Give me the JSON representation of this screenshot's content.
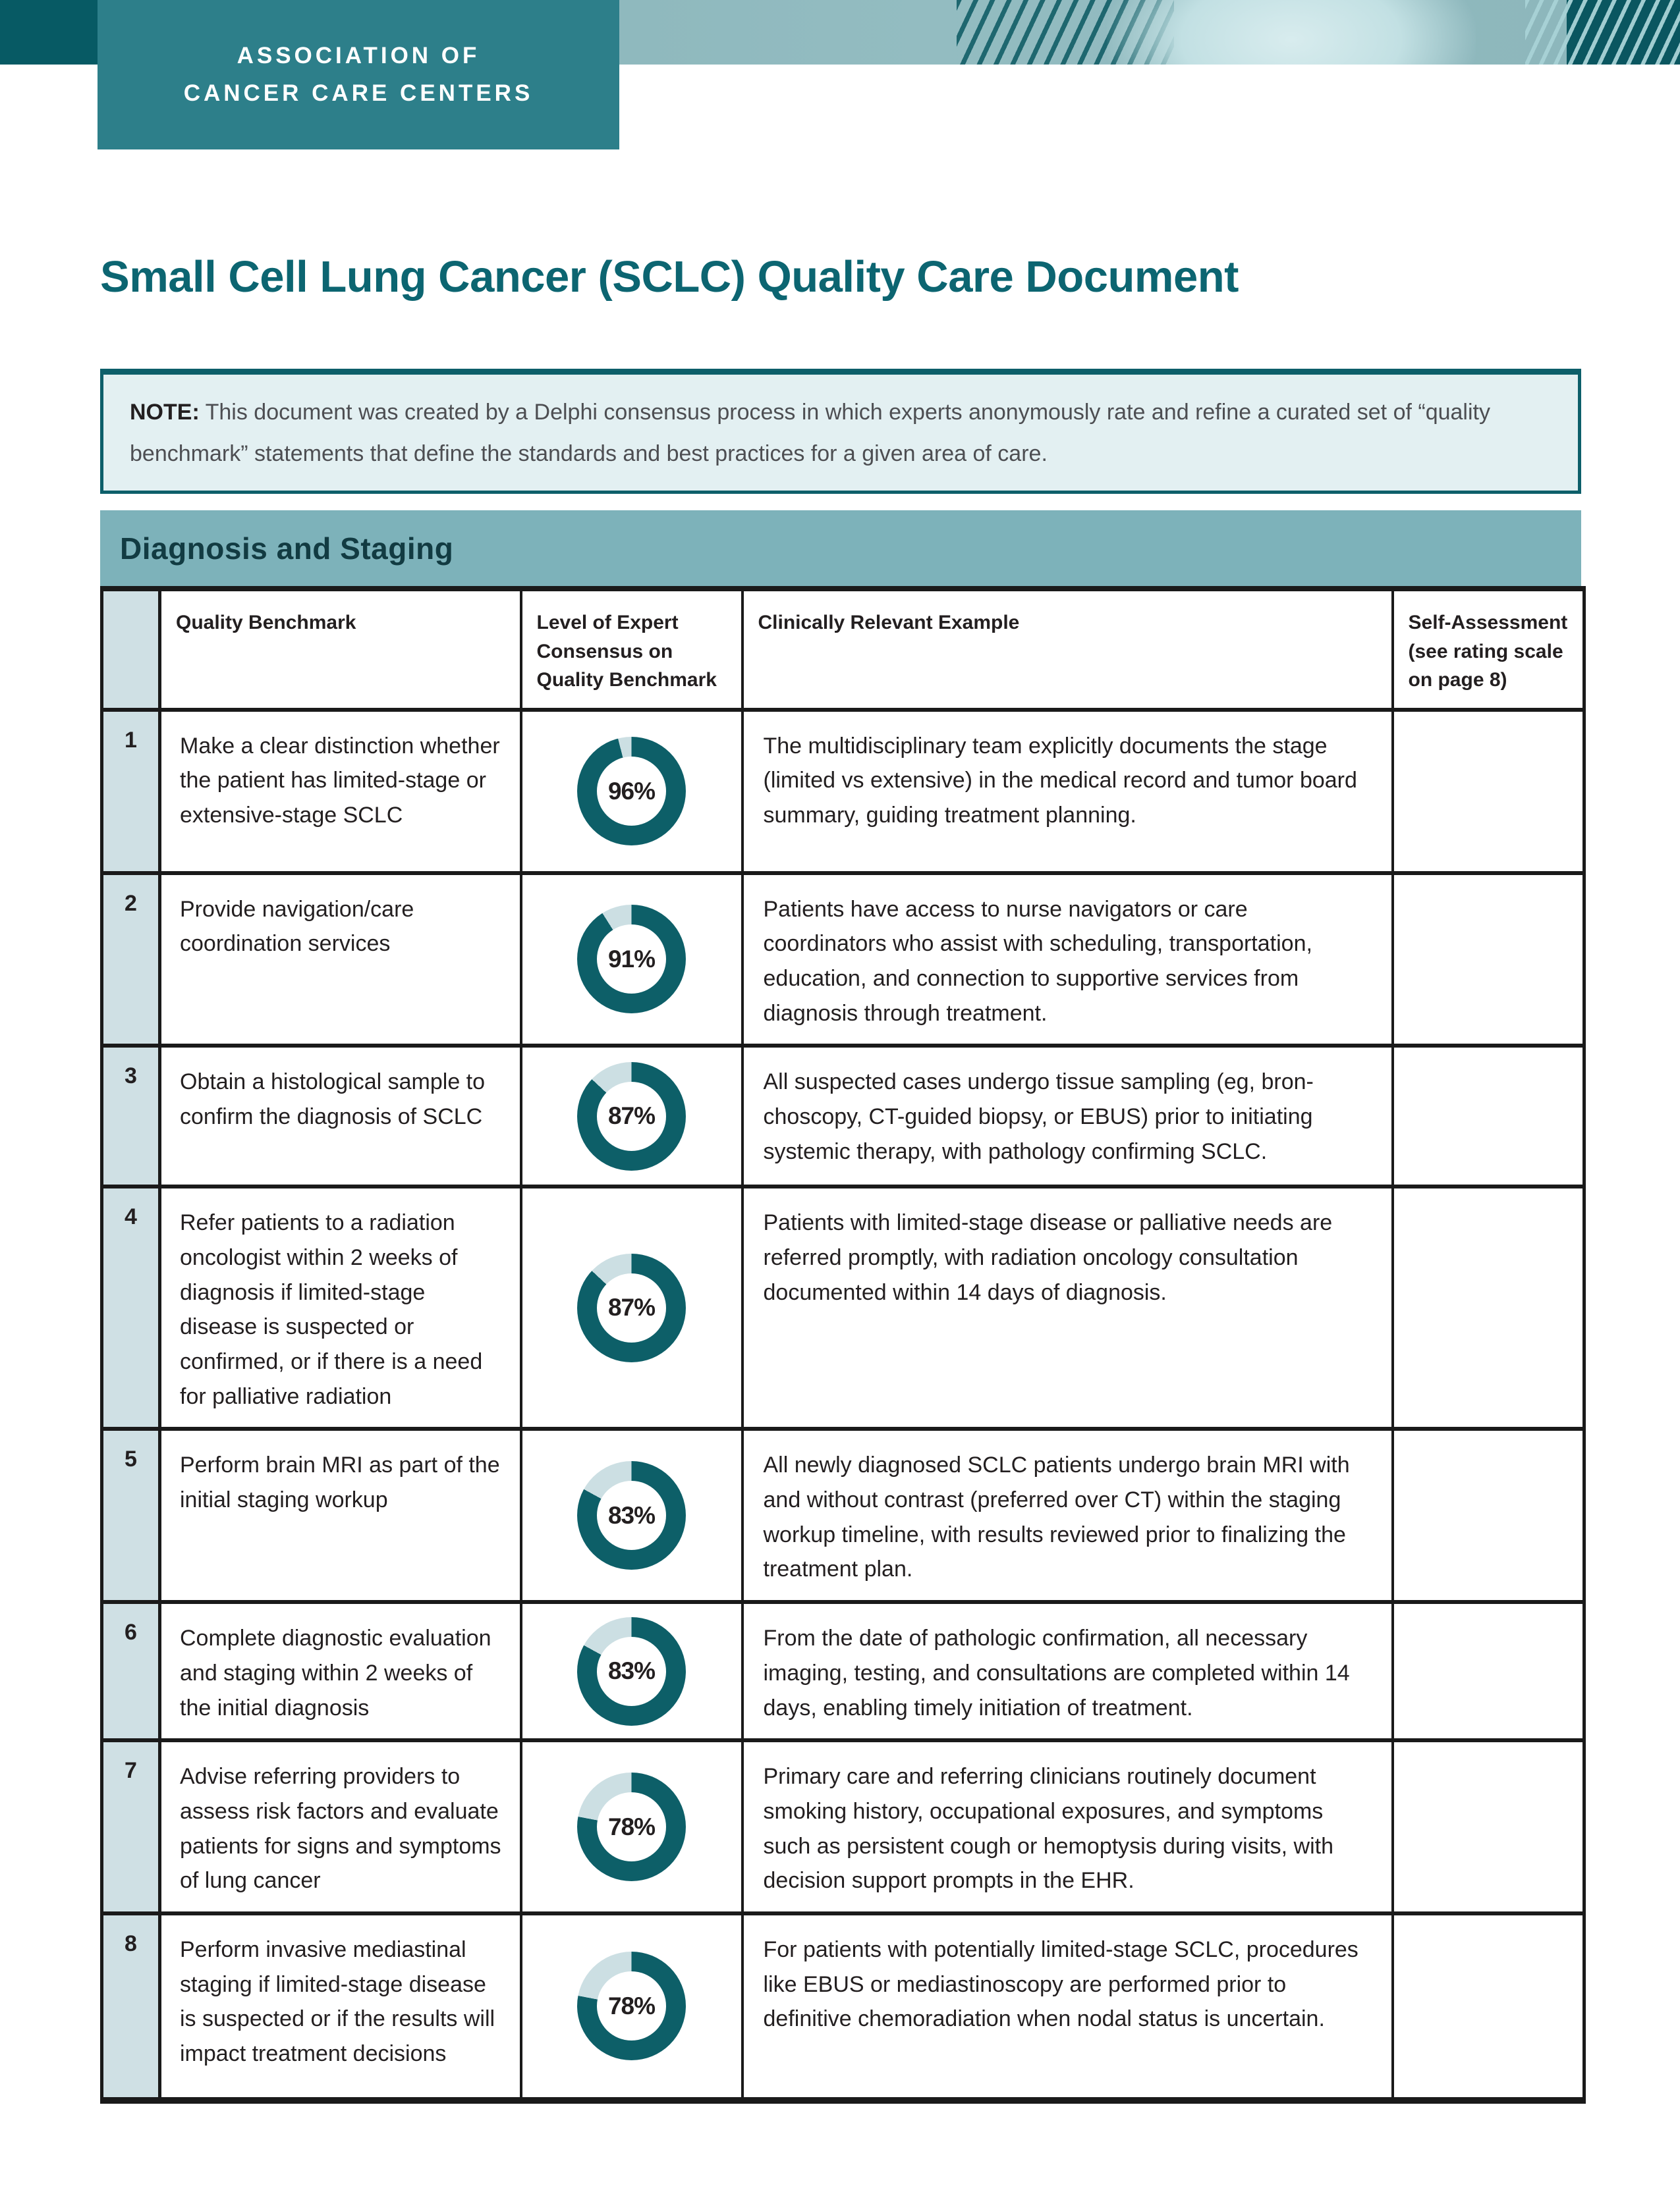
{
  "header": {
    "org_line1": "ASSOCIATION OF",
    "org_line2": "CANCER CARE CENTERS",
    "decoration": "teal-diagonal-stripes-pattern"
  },
  "title": "Small Cell Lung Cancer (SCLC) Quality Care Document",
  "note": {
    "label": "NOTE:",
    "text": "This document was created by a Delphi consensus process in which experts anonymously rate and refine a curated set of “quality benchmark” statements that define the standards and best practices for a given area of care."
  },
  "section": {
    "title": "Diagnosis and Staging"
  },
  "colors": {
    "brand_teal_dark": "#075a64",
    "brand_teal": "#2d7f8a",
    "title_teal": "#0c6571",
    "section_band_bg": "#7db2ba",
    "section_band_text": "#123b42",
    "note_bg": "#e3f0f2",
    "note_border": "#0d5f6a",
    "number_column_bg": "#cfe0e4",
    "donut_fill": "#0d5f68",
    "donut_remainder": "#ccdfe3",
    "table_border": "#1a1a1a"
  },
  "table": {
    "columns": [
      "Quality Benchmark",
      "Level of Expert Consensus on Quality Benchmark",
      "Clinically Relevant Example",
      "Self-Assessment (see rating scale on page 8)"
    ],
    "rows": [
      {
        "num": "1",
        "benchmark": "Make a clear distinction whether the patient has limited-stage or extensive-stage SCLC",
        "consensus_pct": 96,
        "consensus_label": "96%",
        "example": "The multidisciplinary team explicitly documents the stage (limited vs extensive) in the medical record and tumor board summary, guiding treatment planning.",
        "self_assessment": ""
      },
      {
        "num": "2",
        "benchmark": "Provide navigation/care coordination services",
        "consensus_pct": 91,
        "consensus_label": "91%",
        "example": "Patients have access to nurse navigators or care coordinators who assist with scheduling, transportation, education, and connection to supportive services from diagnosis through treatment.",
        "self_assessment": ""
      },
      {
        "num": "3",
        "benchmark": "Obtain a histological sample to confirm the diagnosis of SCLC",
        "consensus_pct": 87,
        "consensus_label": "87%",
        "example": "All suspected cases undergo tissue sampling (eg, bron­choscopy, CT-guided biopsy, or EBUS) prior to initiating systemic therapy, with pathology confirming SCLC.",
        "self_assessment": ""
      },
      {
        "num": "4",
        "benchmark": "Refer patients to a radiation oncologist within 2 weeks of diagnosis if limited-stage disease is suspected or confirmed, or if there is a need for palliative radiation",
        "consensus_pct": 87,
        "consensus_label": "87%",
        "example": "Patients with limited-stage disease or palliative needs are referred promptly, with radiation oncology consultation documented within 14 days of diagnosis.",
        "self_assessment": ""
      },
      {
        "num": "5",
        "benchmark": "Perform brain MRI as part of the initial staging workup",
        "consensus_pct": 83,
        "consensus_label": "83%",
        "example": "All newly diagnosed SCLC patients undergo brain MRI with and without contrast (preferred over CT) within the staging workup timeline, with results reviewed prior to finalizing the treatment plan.",
        "self_assessment": ""
      },
      {
        "num": "6",
        "benchmark": "Complete diagnostic eval­uation and staging within 2 weeks of the initial diagnosis",
        "consensus_pct": 83,
        "consensus_label": "83%",
        "example": "From the date of pathologic confirmation, all necessary imaging, testing, and consultations are completed within 14 days, enabling timely initiation of treatment.",
        "self_assessment": ""
      },
      {
        "num": "7",
        "benchmark": "Advise referring providers to assess risk factors and evaluate patients for signs and symptoms of lung cancer",
        "consensus_pct": 78,
        "consensus_label": "78%",
        "example": "Primary care and referring clinicians routinely document smoking history, occupational exposures, and symp­toms such as persistent cough or hemoptysis during visits, with decision support prompts in the EHR.",
        "self_assessment": ""
      },
      {
        "num": "8",
        "benchmark": "Perform invasive mediastinal staging if limited-stage disease is suspected or if the results will impact treatment decisions",
        "consensus_pct": 78,
        "consensus_label": "78%",
        "example": "For patients with potentially limited-stage SCLC, procedures like EBUS or mediastinoscopy are performed prior to definitive chemoradiation when nodal status is uncertain.",
        "self_assessment": ""
      }
    ]
  }
}
